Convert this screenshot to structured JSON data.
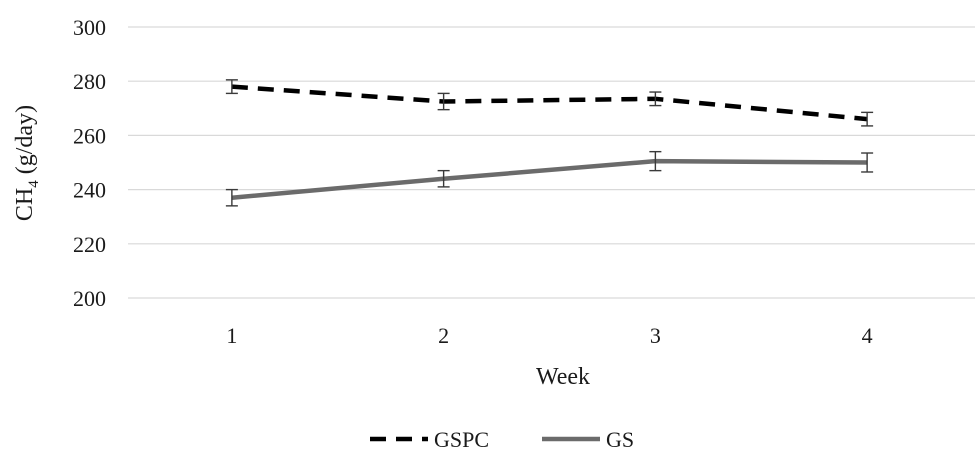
{
  "chart_data": {
    "type": "line",
    "title": "",
    "xlabel": "Week",
    "ylabel": "CH",
    "ylabel_subscript": "4",
    "ylabel_suffix": " (g/day)",
    "categories": [
      "1",
      "2",
      "3",
      "4"
    ],
    "ylim": [
      200,
      300
    ],
    "yticks": [
      200,
      220,
      240,
      260,
      280,
      300
    ],
    "ytick_labels": [
      "200",
      "220",
      "240",
      "260",
      "280",
      "300"
    ],
    "grid": "horizontal",
    "legend_position": "bottom",
    "series": [
      {
        "name": "GSPC",
        "style": "dashed",
        "color": "#000000",
        "values": [
          278,
          272.5,
          273.5,
          266
        ],
        "errors": [
          2.5,
          3,
          2.5,
          2.5
        ]
      },
      {
        "name": "GS",
        "style": "solid",
        "color": "#6b6b6b",
        "values": [
          237,
          244,
          250.5,
          250
        ],
        "errors": [
          3,
          3,
          3.5,
          3.5
        ]
      }
    ]
  }
}
